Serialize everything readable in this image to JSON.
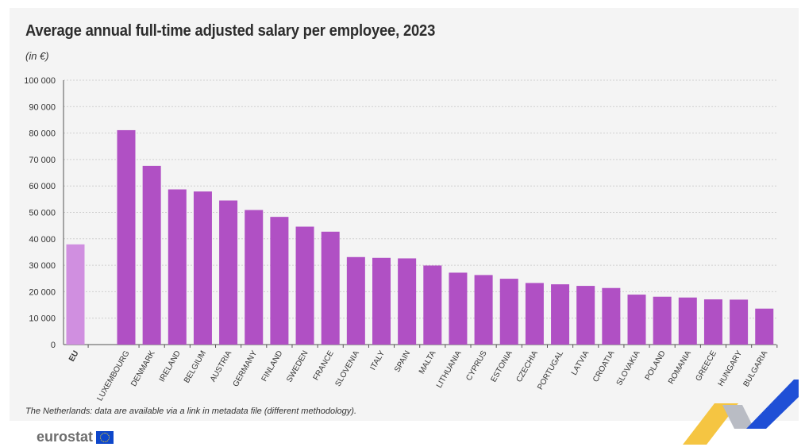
{
  "title": "Average annual full-time adjusted salary per employee, 2023",
  "unit": "(in €)",
  "footnote": "The Netherlands: data are available via a link in metadata file (different methodology).",
  "brand": "eurostat",
  "colors": {
    "eu": "#d08fe0",
    "country": "#b050c4",
    "grid": "#cfcfcf",
    "axis": "#555555"
  },
  "chart_data": {
    "type": "bar",
    "title": "Average annual full-time adjusted salary per employee, 2023",
    "ylabel": "(in €)",
    "ylim": [
      0,
      100000
    ],
    "yticks": [
      "0",
      "10 000",
      "20 000",
      "30 000",
      "40 000",
      "50 000",
      "60 000",
      "70 000",
      "80 000",
      "90 000",
      "100 000"
    ],
    "yticks_values": [
      0,
      10000,
      20000,
      30000,
      40000,
      50000,
      60000,
      70000,
      80000,
      90000,
      100000
    ],
    "grid": true,
    "categories": [
      "EU",
      "LUXEMBOURG",
      "DENMARK",
      "IRELAND",
      "BELGIUM",
      "AUSTRIA",
      "GERMANY",
      "FINLAND",
      "SWEDEN",
      "FRANCE",
      "SLOVENIA",
      "ITALY",
      "SPAIN",
      "MALTA",
      "LITHUANIA",
      "CYPRUS",
      "ESTONIA",
      "CZECHIA",
      "PORTUGAL",
      "LATVIA",
      "CROATIA",
      "SLOVAKIA",
      "POLAND",
      "ROMANIA",
      "GREECE",
      "HUNGARY",
      "BULGARIA"
    ],
    "values": [
      37900,
      81100,
      67600,
      58700,
      57900,
      54500,
      50900,
      48300,
      44600,
      42700,
      33100,
      32800,
      32600,
      29900,
      27200,
      26300,
      24900,
      23300,
      22800,
      22200,
      21400,
      18900,
      18100,
      17800,
      17100,
      17000,
      13600
    ]
  }
}
